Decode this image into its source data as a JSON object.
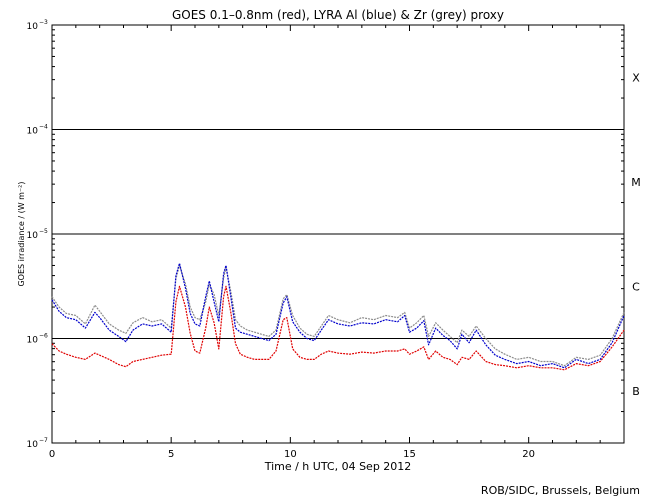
{
  "chart_data": {
    "type": "line",
    "title": "GOES 0.1–0.8nm (red), LYRA Al (blue) & Zr (grey) proxy",
    "xlabel": "Time / h UTC, 04 Sep 2012",
    "ylabel": "GOES irradiance / (W m⁻²)",
    "xlim": [
      0,
      24
    ],
    "ylim_log10": [
      -7,
      -3
    ],
    "yscale": "log",
    "x_ticks": [
      {
        "value": 0,
        "label": "0"
      },
      {
        "value": 5,
        "label": "5"
      },
      {
        "value": 10,
        "label": "10"
      },
      {
        "value": 15,
        "label": "15"
      },
      {
        "value": 20,
        "label": "20"
      }
    ],
    "y_ticks": [
      {
        "exp": -7,
        "base": "10",
        "sup": "−7"
      },
      {
        "exp": -6,
        "base": "10",
        "sup": "−6"
      },
      {
        "exp": -5,
        "base": "10",
        "sup": "−5"
      },
      {
        "exp": -4,
        "base": "10",
        "sup": "−4"
      },
      {
        "exp": -3,
        "base": "10",
        "sup": "−3"
      }
    ],
    "flare_class_lines_log10": [
      -6,
      -5,
      -4
    ],
    "flare_classes": [
      {
        "label": "B",
        "log10": -6.5
      },
      {
        "label": "C",
        "log10": -5.5
      },
      {
        "label": "M",
        "log10": -4.5
      },
      {
        "label": "X",
        "log10": -3.5
      }
    ],
    "series": [
      {
        "name": "LYRA Zr proxy",
        "color": "#8c8c8c",
        "x": [
          0.0,
          0.3,
          0.6,
          1.0,
          1.4,
          1.8,
          2.0,
          2.4,
          2.8,
          3.1,
          3.4,
          3.8,
          4.2,
          4.6,
          5.0,
          5.2,
          5.35,
          5.6,
          5.8,
          6.0,
          6.2,
          6.45,
          6.6,
          6.8,
          7.0,
          7.2,
          7.3,
          7.5,
          7.7,
          7.9,
          8.2,
          8.5,
          8.8,
          9.1,
          9.4,
          9.7,
          9.85,
          10.1,
          10.4,
          10.7,
          11.0,
          11.3,
          11.6,
          12.0,
          12.5,
          13.0,
          13.5,
          14.0,
          14.5,
          14.8,
          15.0,
          15.3,
          15.6,
          15.8,
          16.1,
          16.4,
          16.7,
          17.0,
          17.2,
          17.5,
          17.8,
          18.2,
          18.6,
          19.0,
          19.5,
          20.0,
          20.5,
          21.0,
          21.5,
          22.0,
          22.5,
          23.0,
          23.5,
          24.0
        ],
        "log10": [
          -5.6,
          -5.7,
          -5.76,
          -5.78,
          -5.86,
          -5.68,
          -5.74,
          -5.86,
          -5.92,
          -5.95,
          -5.85,
          -5.8,
          -5.84,
          -5.82,
          -5.9,
          -5.43,
          -5.3,
          -5.48,
          -5.7,
          -5.8,
          -5.82,
          -5.65,
          -5.48,
          -5.58,
          -5.78,
          -5.42,
          -5.32,
          -5.55,
          -5.82,
          -5.88,
          -5.92,
          -5.94,
          -5.96,
          -5.98,
          -5.92,
          -5.62,
          -5.58,
          -5.78,
          -5.9,
          -5.96,
          -5.98,
          -5.88,
          -5.78,
          -5.82,
          -5.85,
          -5.8,
          -5.82,
          -5.78,
          -5.8,
          -5.75,
          -5.9,
          -5.85,
          -5.78,
          -5.98,
          -5.85,
          -5.92,
          -5.98,
          -6.04,
          -5.92,
          -5.98,
          -5.88,
          -6.0,
          -6.1,
          -6.15,
          -6.2,
          -6.18,
          -6.22,
          -6.22,
          -6.26,
          -6.18,
          -6.2,
          -6.16,
          -6.0,
          -5.75
        ]
      },
      {
        "name": "LYRA Al proxy",
        "color": "#0000cc",
        "x": [
          0.0,
          0.3,
          0.6,
          1.0,
          1.4,
          1.8,
          2.0,
          2.4,
          2.8,
          3.1,
          3.4,
          3.8,
          4.2,
          4.6,
          5.0,
          5.2,
          5.35,
          5.6,
          5.8,
          6.0,
          6.2,
          6.45,
          6.6,
          6.8,
          7.0,
          7.2,
          7.3,
          7.5,
          7.7,
          7.9,
          8.2,
          8.5,
          8.8,
          9.1,
          9.4,
          9.7,
          9.85,
          10.1,
          10.4,
          10.7,
          11.0,
          11.3,
          11.6,
          12.0,
          12.5,
          13.0,
          13.5,
          14.0,
          14.5,
          14.8,
          15.0,
          15.3,
          15.6,
          15.8,
          16.1,
          16.4,
          16.7,
          17.0,
          17.2,
          17.5,
          17.8,
          18.2,
          18.6,
          19.0,
          19.5,
          20.0,
          20.5,
          21.0,
          21.5,
          22.0,
          22.5,
          23.0,
          23.5,
          24.0
        ],
        "log10": [
          -5.63,
          -5.74,
          -5.8,
          -5.82,
          -5.9,
          -5.75,
          -5.8,
          -5.92,
          -5.98,
          -6.03,
          -5.92,
          -5.86,
          -5.88,
          -5.86,
          -5.94,
          -5.4,
          -5.28,
          -5.52,
          -5.76,
          -5.86,
          -5.88,
          -5.6,
          -5.45,
          -5.65,
          -5.84,
          -5.38,
          -5.3,
          -5.6,
          -5.9,
          -5.94,
          -5.96,
          -5.98,
          -6.0,
          -6.02,
          -5.96,
          -5.66,
          -5.6,
          -5.84,
          -5.94,
          -6.0,
          -6.02,
          -5.92,
          -5.82,
          -5.86,
          -5.88,
          -5.85,
          -5.86,
          -5.82,
          -5.84,
          -5.78,
          -5.94,
          -5.9,
          -5.83,
          -6.06,
          -5.9,
          -5.97,
          -6.02,
          -6.1,
          -5.96,
          -6.04,
          -5.92,
          -6.06,
          -6.16,
          -6.2,
          -6.24,
          -6.22,
          -6.26,
          -6.24,
          -6.28,
          -6.2,
          -6.24,
          -6.2,
          -6.04,
          -5.78
        ]
      },
      {
        "name": "GOES 0.1–0.8nm",
        "color": "#e00000",
        "x": [
          0.0,
          0.3,
          0.6,
          1.0,
          1.4,
          1.8,
          2.0,
          2.4,
          2.8,
          3.1,
          3.4,
          3.8,
          4.2,
          4.6,
          5.0,
          5.2,
          5.35,
          5.6,
          5.8,
          6.0,
          6.2,
          6.45,
          6.6,
          6.8,
          7.0,
          7.2,
          7.3,
          7.5,
          7.7,
          7.9,
          8.2,
          8.5,
          8.8,
          9.1,
          9.4,
          9.7,
          9.85,
          10.1,
          10.4,
          10.7,
          11.0,
          11.3,
          11.6,
          12.0,
          12.5,
          13.0,
          13.5,
          14.0,
          14.5,
          14.8,
          15.0,
          15.3,
          15.6,
          15.8,
          16.1,
          16.4,
          16.7,
          17.0,
          17.2,
          17.5,
          17.8,
          18.2,
          18.6,
          19.0,
          19.5,
          20.0,
          20.5,
          21.0,
          21.5,
          22.0,
          22.5,
          23.0,
          23.5,
          24.0
        ],
        "log10": [
          -6.05,
          -6.12,
          -6.15,
          -6.18,
          -6.2,
          -6.14,
          -6.16,
          -6.2,
          -6.25,
          -6.27,
          -6.22,
          -6.2,
          -6.18,
          -6.16,
          -6.15,
          -5.65,
          -5.5,
          -5.7,
          -5.95,
          -6.12,
          -6.14,
          -5.9,
          -5.7,
          -5.85,
          -6.1,
          -5.6,
          -5.5,
          -5.75,
          -6.05,
          -6.15,
          -6.18,
          -6.2,
          -6.2,
          -6.2,
          -6.12,
          -5.82,
          -5.8,
          -6.1,
          -6.18,
          -6.2,
          -6.2,
          -6.15,
          -6.12,
          -6.14,
          -6.15,
          -6.13,
          -6.14,
          -6.12,
          -6.12,
          -6.1,
          -6.15,
          -6.12,
          -6.08,
          -6.2,
          -6.12,
          -6.18,
          -6.2,
          -6.25,
          -6.18,
          -6.2,
          -6.12,
          -6.22,
          -6.25,
          -6.26,
          -6.28,
          -6.26,
          -6.28,
          -6.28,
          -6.3,
          -6.24,
          -6.26,
          -6.22,
          -6.08,
          -5.92
        ]
      }
    ],
    "footer": "ROB/SIDC, Brussels, Belgium"
  }
}
